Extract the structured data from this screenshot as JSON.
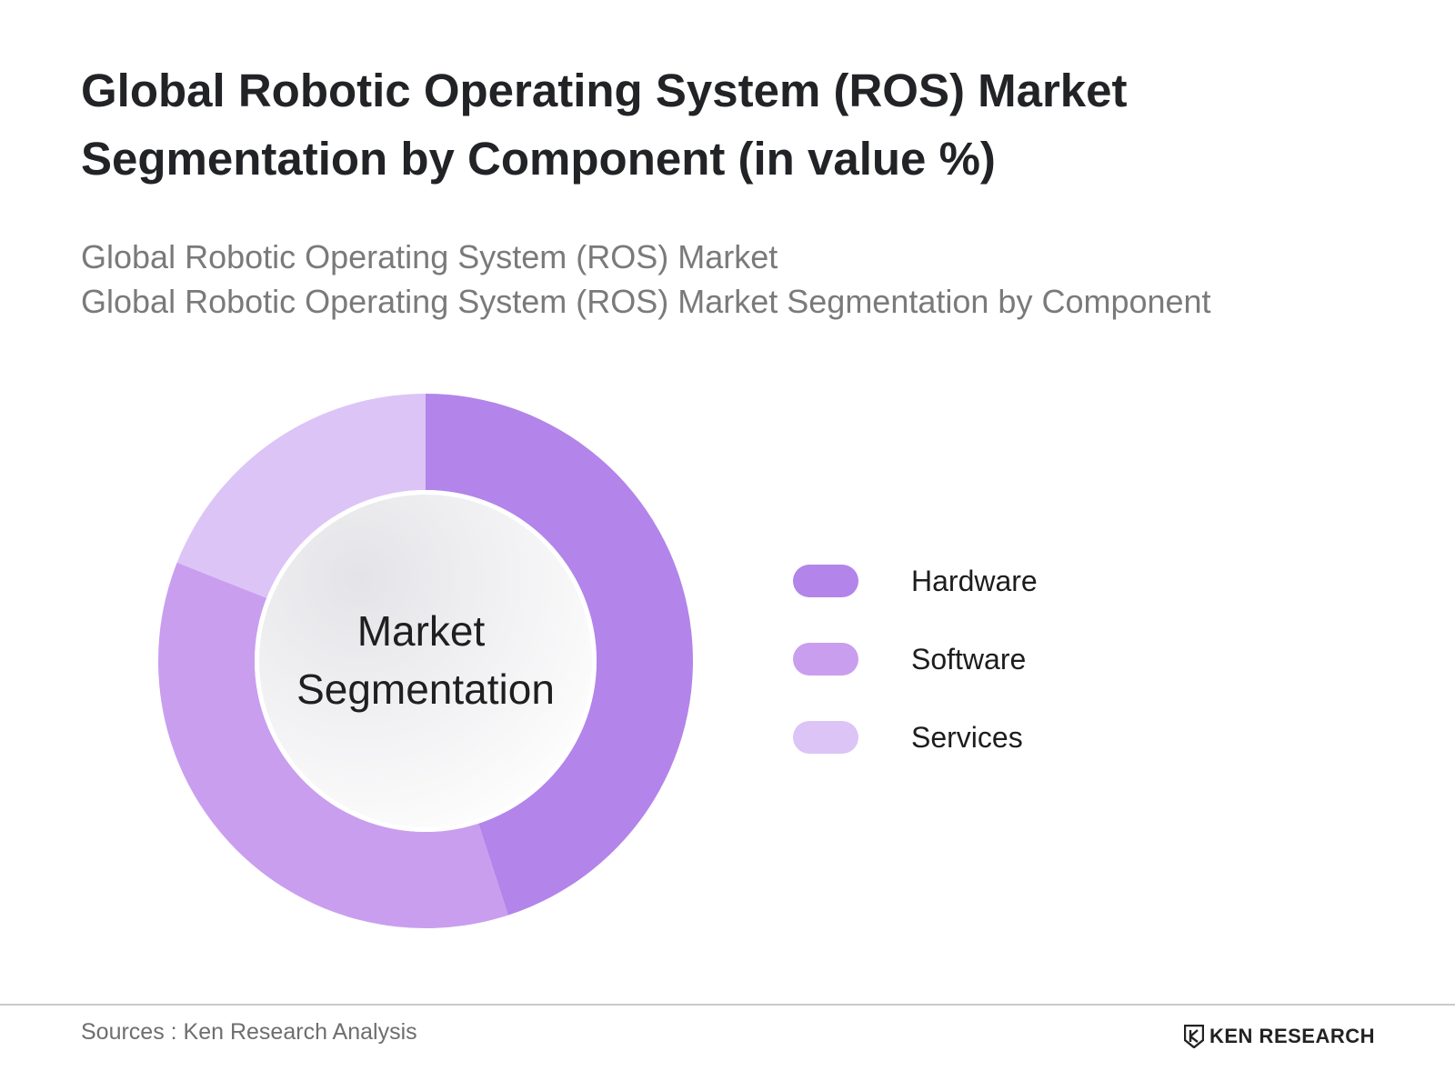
{
  "header": {
    "title_line1": "Global Robotic Operating System (ROS) Market",
    "title_line2": "Segmentation by Component (in value %)",
    "subtitle_line1": "Global Robotic Operating System (ROS) Market",
    "subtitle_line2": "Global Robotic Operating System (ROS) Market Segmentation by Component"
  },
  "chart_data": {
    "type": "pie",
    "style": "donut",
    "center_label_line1": "Market",
    "center_label_line2": "Segmentation",
    "categories": [
      "Hardware",
      "Software",
      "Services"
    ],
    "values": [
      45,
      36,
      19
    ],
    "colors": [
      "#b384ea",
      "#c99eef",
      "#dcc4f6",
      "#eadbfa"
    ],
    "legend_position": "right"
  },
  "footer": {
    "source": "Sources : Ken Research Analysis",
    "brand": "KEN RESEARCH"
  }
}
